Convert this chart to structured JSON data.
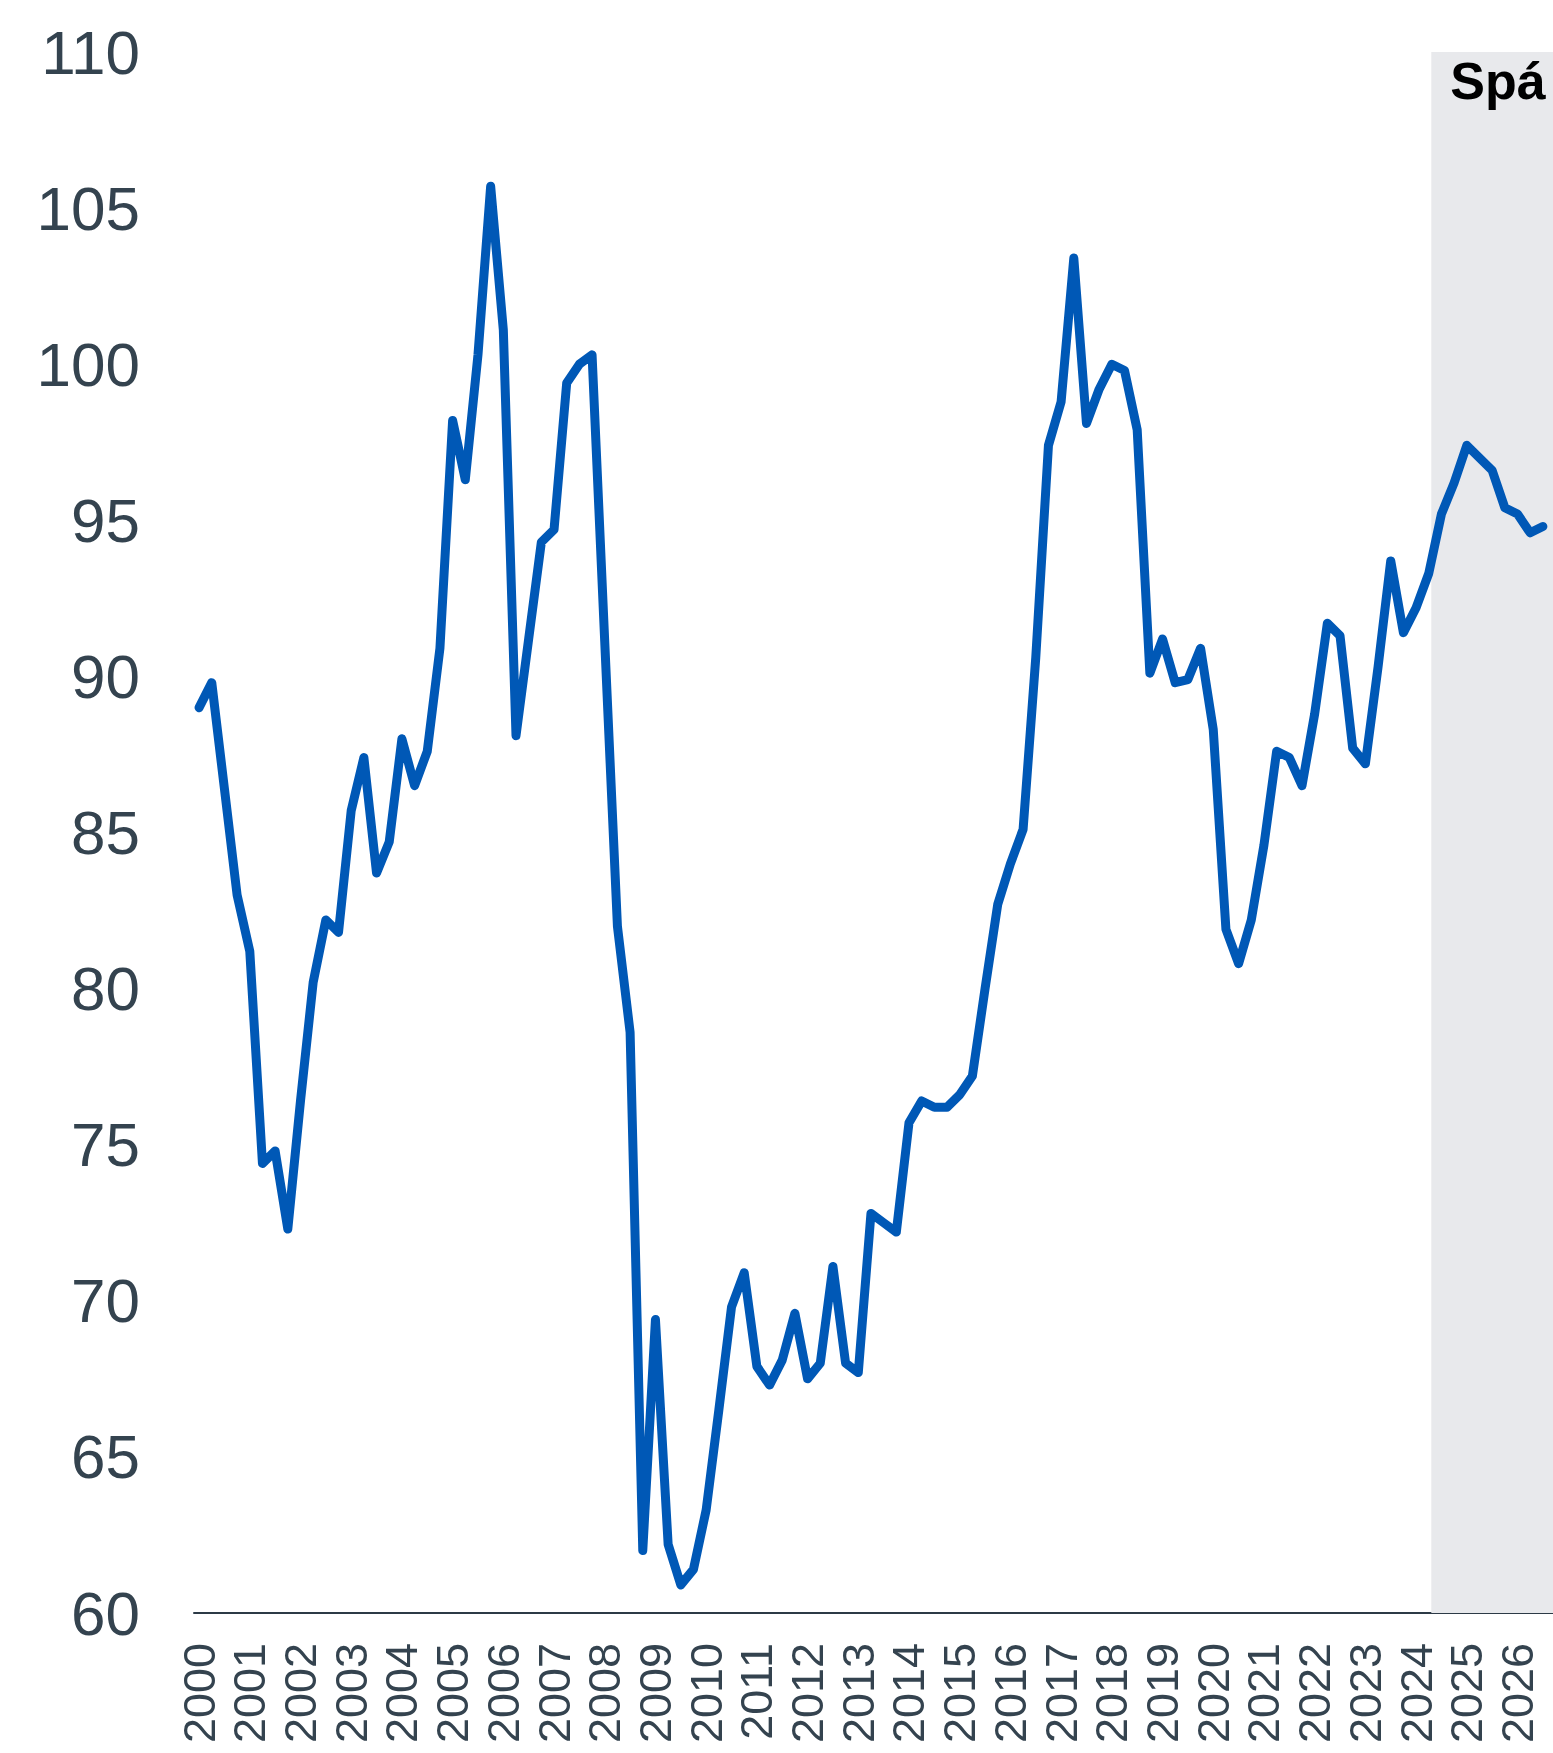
{
  "chart_data": {
    "type": "line",
    "x": [
      2000,
      2000.25,
      2000.5,
      2000.75,
      2001,
      2001.25,
      2001.5,
      2001.75,
      2002,
      2002.25,
      2002.5,
      2002.75,
      2003,
      2003.25,
      2003.5,
      2003.75,
      2004,
      2004.25,
      2004.5,
      2004.75,
      2005,
      2005.25,
      2005.5,
      2005.75,
      2006,
      2006.25,
      2006.5,
      2006.75,
      2007,
      2007.25,
      2007.5,
      2007.75,
      2008,
      2008.25,
      2008.5,
      2008.75,
      2009,
      2009.25,
      2009.5,
      2009.75,
      2010,
      2010.25,
      2010.5,
      2010.75,
      2011,
      2011.25,
      2011.5,
      2011.75,
      2012,
      2012.25,
      2012.5,
      2012.75,
      2013,
      2013.25,
      2013.5,
      2013.75,
      2014,
      2014.25,
      2014.5,
      2014.75,
      2015,
      2015.25,
      2015.5,
      2015.75,
      2016,
      2016.25,
      2016.5,
      2016.75,
      2017,
      2017.25,
      2017.5,
      2017.75,
      2018,
      2018.25,
      2018.5,
      2018.75,
      2019,
      2019.25,
      2019.5,
      2019.75,
      2020,
      2020.25,
      2020.5,
      2020.75,
      2021,
      2021.25,
      2021.5,
      2021.75,
      2022,
      2022.25,
      2022.5,
      2022.75,
      2023,
      2023.25,
      2023.5,
      2023.75,
      2024,
      2024.25,
      2024.5,
      2024.75,
      2025,
      2025.25,
      2025.5,
      2025.75,
      2026,
      2026.25,
      2026.5
    ],
    "values": [
      89,
      89.8,
      86.4,
      83,
      81.2,
      74.4,
      74.8,
      72.3,
      76.4,
      80.2,
      82.2,
      81.8,
      85.7,
      87.4,
      83.7,
      84.7,
      88,
      86.5,
      87.6,
      90.9,
      98.2,
      96.3,
      100.3,
      105.7,
      101.1,
      88.1,
      91.2,
      94.3,
      94.7,
      99.4,
      100,
      100.3,
      91.1,
      82,
      78.6,
      62,
      69.4,
      62.2,
      60.9,
      61.4,
      63.3,
      66.5,
      69.8,
      70.9,
      67.9,
      67.3,
      68.1,
      69.6,
      67.5,
      68,
      71.1,
      68,
      67.7,
      72.8,
      72.5,
      72.2,
      75.7,
      76.4,
      76.2,
      76.2,
      76.6,
      77.2,
      80,
      82.7,
      84,
      85.1,
      90.6,
      97.4,
      98.8,
      103.4,
      98.1,
      99.2,
      100,
      99.8,
      97.9,
      90.1,
      91.2,
      89.8,
      89.9,
      90.9,
      88.3,
      81.9,
      80.8,
      82.2,
      84.6,
      87.6,
      87.4,
      86.5,
      88.8,
      91.7,
      91.3,
      87.7,
      87.2,
      90.3,
      93.7,
      91.4,
      92.2,
      93.3,
      95.2,
      96.2,
      97.4,
      97,
      96.6,
      95.4,
      95.2,
      94.6,
      94.8
    ],
    "color": "#0058b6",
    "xlim": [
      1999.9,
      2026.7
    ],
    "ylim": [
      60,
      110
    ],
    "xticks": [
      2000,
      2001,
      2002,
      2003,
      2004,
      2005,
      2006,
      2007,
      2008,
      2009,
      2010,
      2011,
      2012,
      2013,
      2014,
      2015,
      2016,
      2017,
      2018,
      2019,
      2020,
      2021,
      2022,
      2023,
      2024,
      2025,
      2026
    ],
    "yticks": [
      60,
      65,
      70,
      75,
      80,
      85,
      90,
      95,
      100,
      105,
      110
    ],
    "grid": false,
    "marker": "none",
    "line_style": "solid",
    "bands": [
      {
        "axis": "x",
        "from": 2024.3,
        "to": 2026.7,
        "label": "Spá",
        "color": "#e8e9ec"
      }
    ]
  }
}
